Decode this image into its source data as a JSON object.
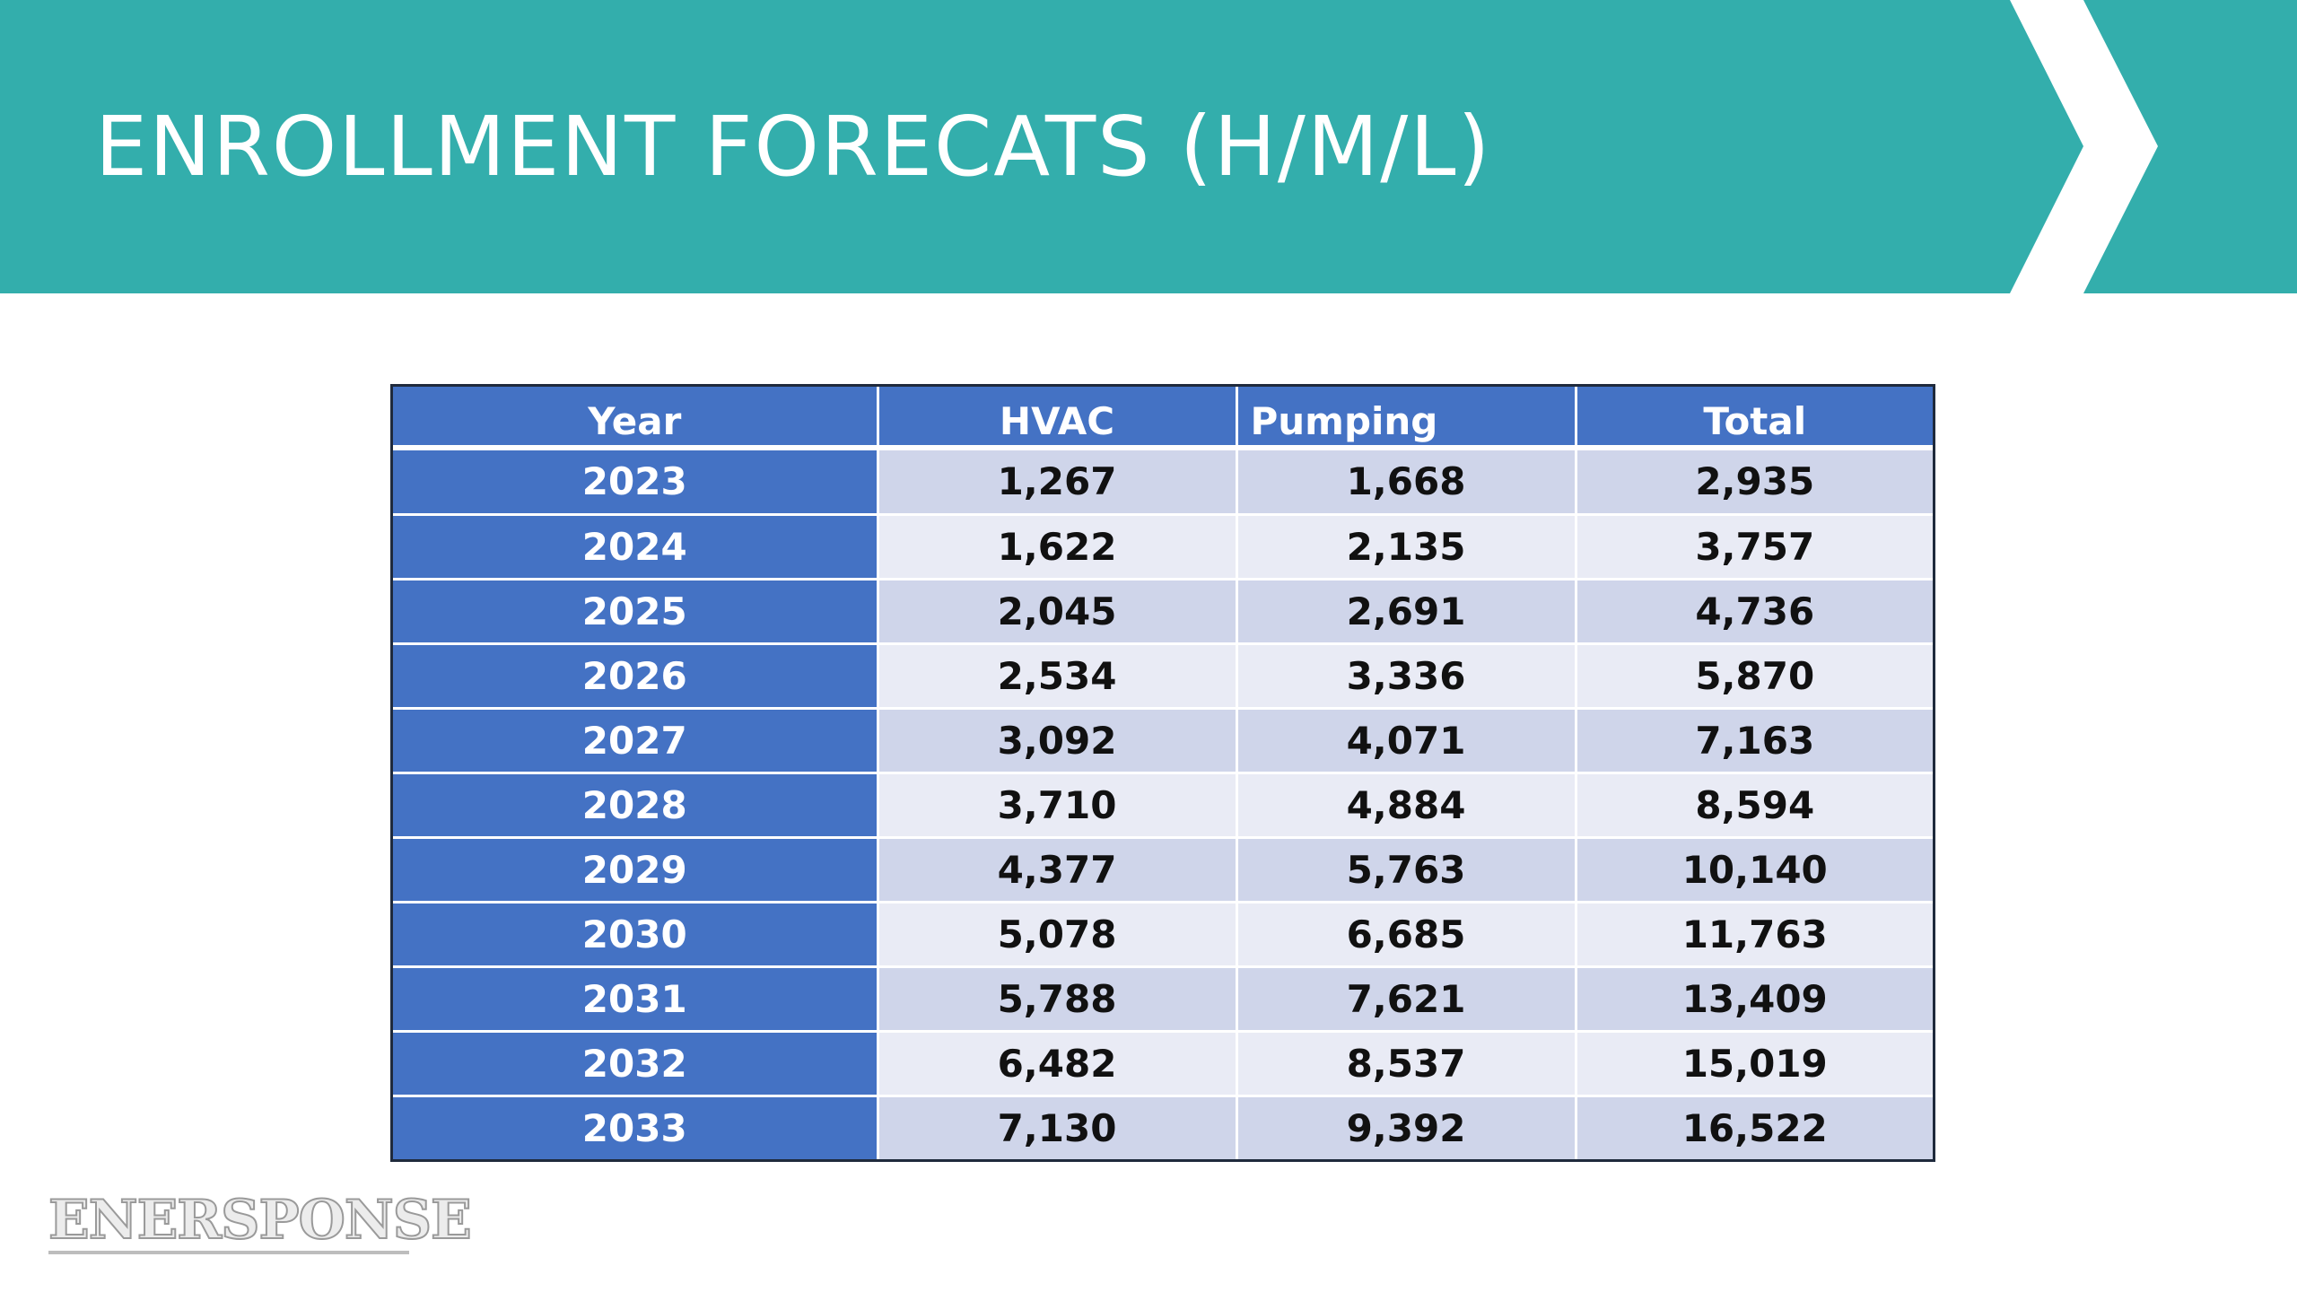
{
  "slide": {
    "title": "ENROLLMENT FORECATS (H/M/L)",
    "accent_color": "#33aeac",
    "table_header_color": "#4472c4"
  },
  "table": {
    "headers": [
      "Year",
      "HVAC",
      "Pumping",
      "Total"
    ],
    "rows": [
      [
        "2023",
        "1,267",
        "1,668",
        "2,935"
      ],
      [
        "2024",
        "1,622",
        "2,135",
        "3,757"
      ],
      [
        "2025",
        "2,045",
        "2,691",
        "4,736"
      ],
      [
        "2026",
        "2,534",
        "3,336",
        "5,870"
      ],
      [
        "2027",
        "3,092",
        "4,071",
        "7,163"
      ],
      [
        "2028",
        "3,710",
        "4,884",
        "8,594"
      ],
      [
        "2029",
        "4,377",
        "5,763",
        "10,140"
      ],
      [
        "2030",
        "5,078",
        "6,685",
        "11,763"
      ],
      [
        "2031",
        "5,788",
        "7,621",
        "13,409"
      ],
      [
        "2032",
        "6,482",
        "8,537",
        "15,019"
      ],
      [
        "2033",
        "7,130",
        "9,392",
        "16,522"
      ]
    ]
  },
  "logo": {
    "text": "ENERSPONSE"
  }
}
